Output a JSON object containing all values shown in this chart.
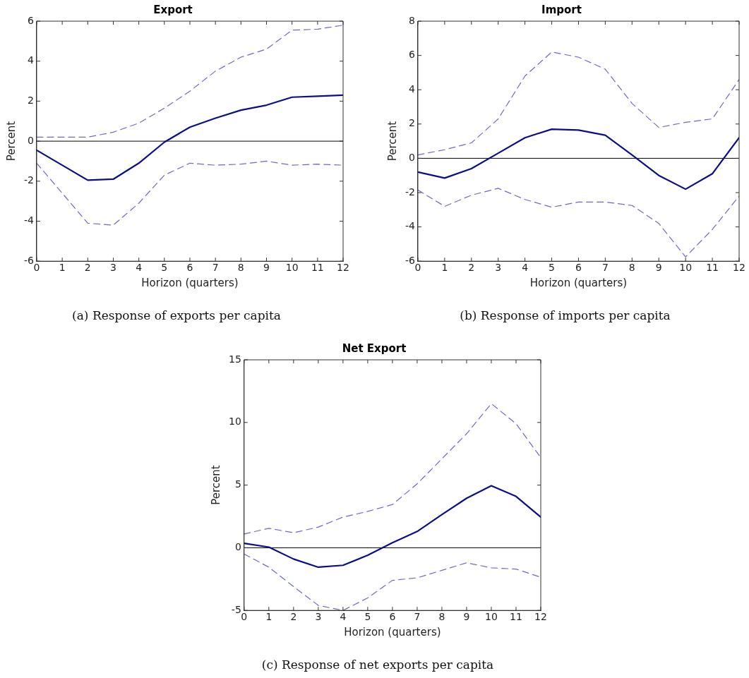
{
  "chart_data": [
    {
      "type": "line",
      "title": "Export",
      "xlabel": "Horizon (quarters)",
      "ylabel": "Percent",
      "annotations": [
        "(a)  Response of exports per capita"
      ],
      "x": [
        0,
        1,
        2,
        3,
        4,
        5,
        6,
        7,
        8,
        9,
        10,
        11,
        12
      ],
      "xlim": [
        0,
        12
      ],
      "xticks": [
        0,
        1,
        2,
        3,
        4,
        5,
        6,
        7,
        8,
        9,
        10,
        11,
        12
      ],
      "ylim": [
        -6,
        6
      ],
      "yticks": [
        -6,
        -4,
        -2,
        0,
        2,
        4,
        6
      ],
      "grid": false,
      "legend": false,
      "marker": "none",
      "ref_lines": [
        {
          "axis": "y",
          "value": 0,
          "color": "#000000"
        }
      ],
      "series": [
        {
          "color": "#0d0d8a",
          "line_style": "solid",
          "values": [
            -0.45,
            -1.2,
            -1.95,
            -1.9,
            -1.1,
            -0.05,
            0.7,
            1.15,
            1.55,
            1.8,
            2.2,
            2.25,
            2.3
          ]
        },
        {
          "color": "#6b6bc0",
          "line_style": "dashed",
          "values": [
            0.2,
            0.2,
            0.2,
            0.45,
            0.9,
            1.65,
            2.5,
            3.5,
            4.2,
            4.6,
            5.55,
            5.6,
            5.8
          ]
        },
        {
          "color": "#6b6bc0",
          "line_style": "dashed",
          "values": [
            -1.1,
            -2.6,
            -4.1,
            -4.2,
            -3.1,
            -1.7,
            -1.1,
            -1.2,
            -1.15,
            -1.0,
            -1.2,
            -1.15,
            -1.2
          ]
        }
      ]
    },
    {
      "type": "line",
      "title": "Import",
      "xlabel": "Horizon (quarters)",
      "ylabel": "Percent",
      "annotations": [
        "(b)  Response of imports per capita"
      ],
      "x": [
        0,
        1,
        2,
        3,
        4,
        5,
        6,
        7,
        8,
        9,
        10,
        11,
        12
      ],
      "xlim": [
        0,
        12
      ],
      "xticks": [
        0,
        1,
        2,
        3,
        4,
        5,
        6,
        7,
        8,
        9,
        10,
        11,
        12
      ],
      "ylim": [
        -6,
        8
      ],
      "yticks": [
        -6,
        -4,
        -2,
        0,
        2,
        4,
        6,
        8
      ],
      "grid": false,
      "legend": false,
      "marker": "none",
      "ref_lines": [
        {
          "axis": "y",
          "value": 0,
          "color": "#000000"
        }
      ],
      "series": [
        {
          "color": "#0d0d8a",
          "line_style": "solid",
          "values": [
            -0.8,
            -1.15,
            -0.6,
            0.3,
            1.2,
            1.7,
            1.65,
            1.35,
            0.2,
            -1.0,
            -1.8,
            -0.9,
            1.2
          ]
        },
        {
          "color": "#6b6bc0",
          "line_style": "dashed",
          "values": [
            0.2,
            0.5,
            0.9,
            2.3,
            4.8,
            6.2,
            5.9,
            5.2,
            3.2,
            1.8,
            2.1,
            2.3,
            4.6
          ]
        },
        {
          "color": "#6b6bc0",
          "line_style": "dashed",
          "values": [
            -1.85,
            -2.8,
            -2.15,
            -1.75,
            -2.4,
            -2.85,
            -2.55,
            -2.55,
            -2.75,
            -3.8,
            -5.75,
            -4.15,
            -2.2
          ]
        }
      ]
    },
    {
      "type": "line",
      "title": "Net Export",
      "xlabel": "Horizon (quarters)",
      "ylabel": "Percent",
      "annotations": [
        "(c)  Response of net exports per capita"
      ],
      "x": [
        0,
        1,
        2,
        3,
        4,
        5,
        6,
        7,
        8,
        9,
        10,
        11,
        12
      ],
      "xlim": [
        0,
        12
      ],
      "xticks": [
        0,
        1,
        2,
        3,
        4,
        5,
        6,
        7,
        8,
        9,
        10,
        11,
        12
      ],
      "ylim": [
        -5,
        15
      ],
      "yticks": [
        -5,
        0,
        5,
        10,
        15
      ],
      "grid": false,
      "legend": false,
      "marker": "none",
      "ref_lines": [
        {
          "axis": "y",
          "value": 0,
          "color": "#000000"
        }
      ],
      "series": [
        {
          "color": "#0d0d8a",
          "line_style": "solid",
          "values": [
            0.35,
            0.05,
            -0.9,
            -1.55,
            -1.4,
            -0.6,
            0.4,
            1.3,
            2.65,
            3.95,
            4.95,
            4.1,
            2.45
          ]
        },
        {
          "color": "#6b6bc0",
          "line_style": "dashed",
          "values": [
            1.1,
            1.55,
            1.2,
            1.65,
            2.45,
            2.9,
            3.45,
            5.1,
            7.1,
            9.1,
            11.5,
            9.9,
            7.2
          ]
        },
        {
          "color": "#6b6bc0",
          "line_style": "dashed",
          "values": [
            -0.5,
            -1.55,
            -3.1,
            -4.6,
            -5.0,
            -4.0,
            -2.6,
            -2.4,
            -1.8,
            -1.2,
            -1.6,
            -1.7,
            -2.35
          ]
        }
      ]
    }
  ]
}
